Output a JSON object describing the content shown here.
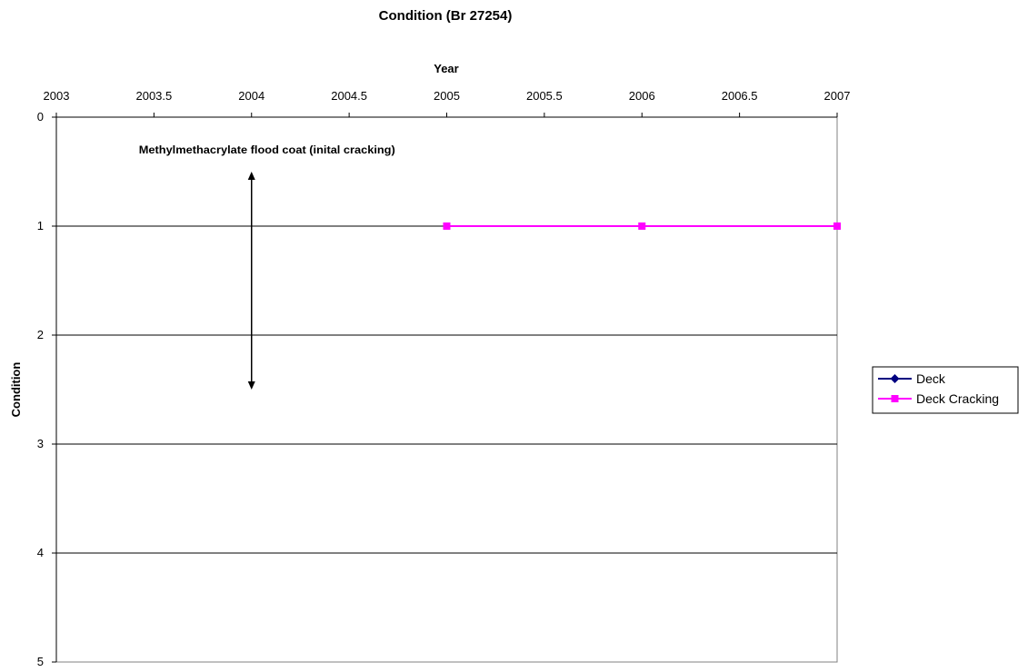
{
  "chart_data": {
    "type": "line",
    "title": "Condition (Br 27254)",
    "xlabel": "Year",
    "ylabel": "Condition",
    "x_axis_position": "top",
    "y_axis_inverted": true,
    "xlim": [
      2003,
      2007
    ],
    "ylim": [
      0,
      5
    ],
    "x_ticks": [
      "2003",
      "2003.5",
      "2004",
      "2004.5",
      "2005",
      "2005.5",
      "2006",
      "2006.5",
      "2007"
    ],
    "y_ticks": [
      "0",
      "1",
      "2",
      "3",
      "4",
      "5"
    ],
    "grid": "horizontal",
    "legend_position": "right",
    "series": [
      {
        "name": "Deck",
        "color": "#000080",
        "marker": "diamond",
        "x": [],
        "y": []
      },
      {
        "name": "Deck Cracking",
        "color": "#FF00FF",
        "marker": "square",
        "x": [
          2005,
          2006,
          2007
        ],
        "y": [
          1,
          1,
          1
        ]
      }
    ],
    "annotations": [
      {
        "text": "Methylmethacrylate flood coat (inital cracking)",
        "x": 2004,
        "y_from": 2.5,
        "y_to": 0.5,
        "style": "double-arrow",
        "color": "#000000"
      }
    ]
  }
}
